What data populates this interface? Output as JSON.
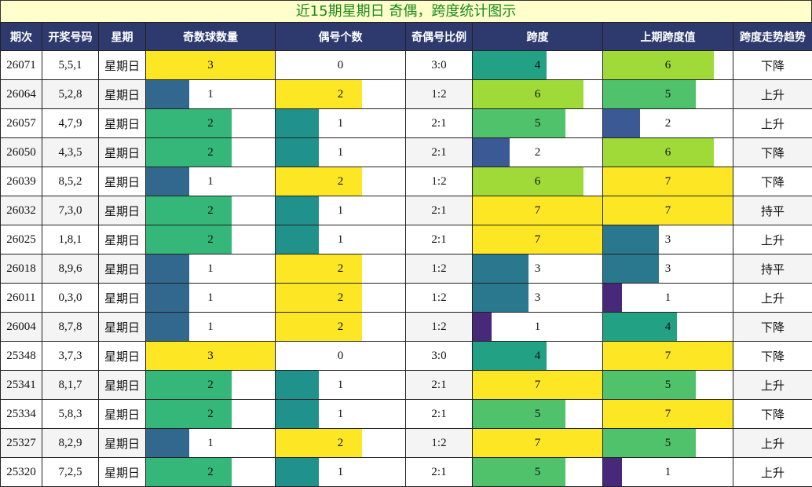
{
  "title": "近15期星期日 奇偶，跨度统计图示",
  "headers": [
    "期次",
    "开奖号码",
    "星期",
    "奇数球数量",
    "偶号个数",
    "奇偶号比例",
    "跨度",
    "上期跨度值",
    "跨度走势趋势"
  ],
  "scales": {
    "odd_max": 3,
    "even_max": 3,
    "span_max": 7,
    "prev_span_max": 7
  },
  "value_colors": {
    "0": "#ffffff",
    "1": "#3d6a8f",
    "2": "#3bba7a",
    "3": "#fde725",
    "4": "#21a08a",
    "5": "#4cc26c",
    "6": "#a0da39",
    "7": "#fde725"
  },
  "count_colors": {
    "1": "#32688e",
    "2": "#35b779",
    "3": "#fde725"
  },
  "even_colors": {
    "0": "#ffffff",
    "1": "#21918c",
    "2": "#fde725"
  },
  "span_colors": {
    "1": "#482878",
    "2": "#3b5a95",
    "3": "#2a788e",
    "4": "#22a185",
    "5": "#4fc26b",
    "6": "#a0da39",
    "7": "#fde725"
  },
  "chart_data": {
    "type": "table",
    "columns": [
      "期次",
      "开奖号码",
      "星期",
      "奇数球数量",
      "偶号个数",
      "奇偶号比例",
      "跨度",
      "上期跨度值",
      "跨度走势趋势"
    ],
    "rows": [
      {
        "issue": "26071",
        "numbers": "5,5,1",
        "weekday": "星期日",
        "odd": 3,
        "even": 0,
        "ratio": "3:0",
        "span": 4,
        "prev_span": 6,
        "trend": "下降"
      },
      {
        "issue": "26064",
        "numbers": "5,2,8",
        "weekday": "星期日",
        "odd": 1,
        "even": 2,
        "ratio": "1:2",
        "span": 6,
        "prev_span": 5,
        "trend": "上升"
      },
      {
        "issue": "26057",
        "numbers": "4,7,9",
        "weekday": "星期日",
        "odd": 2,
        "even": 1,
        "ratio": "2:1",
        "span": 5,
        "prev_span": 2,
        "trend": "上升"
      },
      {
        "issue": "26050",
        "numbers": "4,3,5",
        "weekday": "星期日",
        "odd": 2,
        "even": 1,
        "ratio": "2:1",
        "span": 2,
        "prev_span": 6,
        "trend": "下降"
      },
      {
        "issue": "26039",
        "numbers": "8,5,2",
        "weekday": "星期日",
        "odd": 1,
        "even": 2,
        "ratio": "1:2",
        "span": 6,
        "prev_span": 7,
        "trend": "下降"
      },
      {
        "issue": "26032",
        "numbers": "7,3,0",
        "weekday": "星期日",
        "odd": 2,
        "even": 1,
        "ratio": "2:1",
        "span": 7,
        "prev_span": 7,
        "trend": "持平"
      },
      {
        "issue": "26025",
        "numbers": "1,8,1",
        "weekday": "星期日",
        "odd": 2,
        "even": 1,
        "ratio": "2:1",
        "span": 7,
        "prev_span": 3,
        "trend": "上升"
      },
      {
        "issue": "26018",
        "numbers": "8,9,6",
        "weekday": "星期日",
        "odd": 1,
        "even": 2,
        "ratio": "1:2",
        "span": 3,
        "prev_span": 3,
        "trend": "持平"
      },
      {
        "issue": "26011",
        "numbers": "0,3,0",
        "weekday": "星期日",
        "odd": 1,
        "even": 2,
        "ratio": "1:2",
        "span": 3,
        "prev_span": 1,
        "trend": "上升"
      },
      {
        "issue": "26004",
        "numbers": "8,7,8",
        "weekday": "星期日",
        "odd": 1,
        "even": 2,
        "ratio": "1:2",
        "span": 1,
        "prev_span": 4,
        "trend": "下降"
      },
      {
        "issue": "25348",
        "numbers": "3,7,3",
        "weekday": "星期日",
        "odd": 3,
        "even": 0,
        "ratio": "3:0",
        "span": 4,
        "prev_span": 7,
        "trend": "下降"
      },
      {
        "issue": "25341",
        "numbers": "8,1,7",
        "weekday": "星期日",
        "odd": 2,
        "even": 1,
        "ratio": "2:1",
        "span": 7,
        "prev_span": 5,
        "trend": "上升"
      },
      {
        "issue": "25334",
        "numbers": "5,8,3",
        "weekday": "星期日",
        "odd": 2,
        "even": 1,
        "ratio": "2:1",
        "span": 5,
        "prev_span": 7,
        "trend": "下降"
      },
      {
        "issue": "25327",
        "numbers": "8,2,9",
        "weekday": "星期日",
        "odd": 1,
        "even": 2,
        "ratio": "1:2",
        "span": 7,
        "prev_span": 5,
        "trend": "上升"
      },
      {
        "issue": "25320",
        "numbers": "7,2,5",
        "weekday": "星期日",
        "odd": 2,
        "even": 1,
        "ratio": "2:1",
        "span": 5,
        "prev_span": 1,
        "trend": "上升"
      }
    ]
  }
}
